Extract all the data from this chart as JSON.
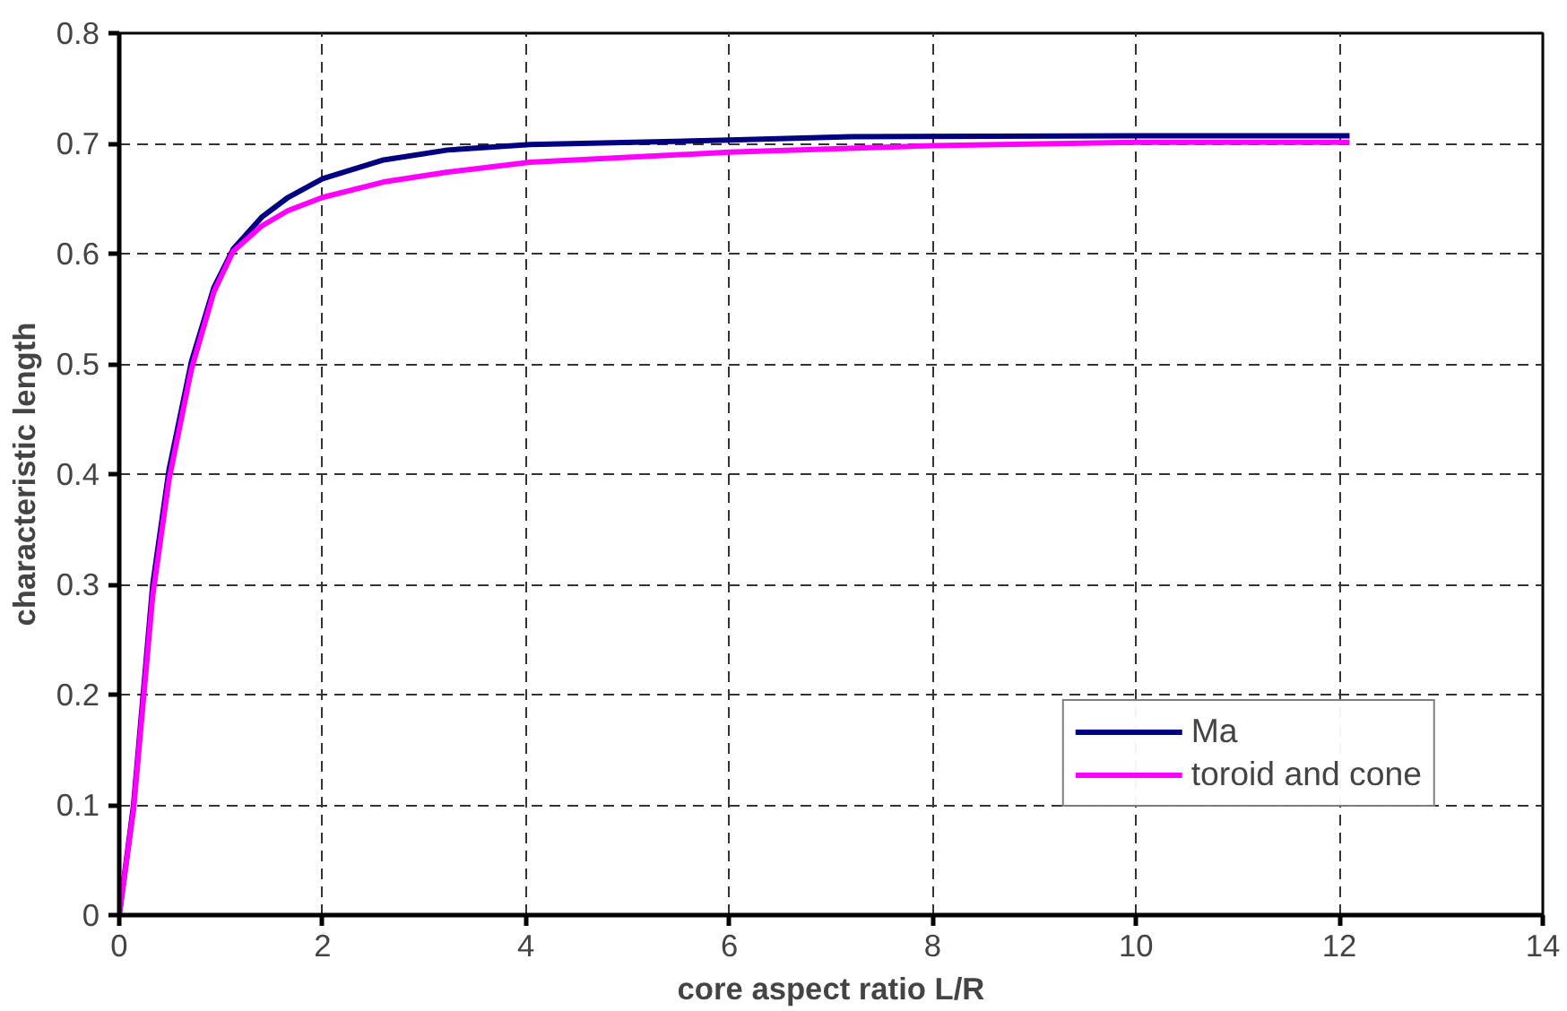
{
  "chart_data": {
    "type": "line",
    "xlabel": "core aspect ratio L/R",
    "ylabel": "characteristic length",
    "xlim": [
      0,
      14
    ],
    "xticks": [
      0,
      2,
      4,
      6,
      8,
      10,
      12,
      14
    ],
    "ylim": [
      0,
      0.8
    ],
    "yticks": [
      0,
      0.1,
      0.2,
      0.3,
      0.4,
      0.5,
      0.6,
      0.7,
      0.8
    ],
    "grid": true,
    "legend": "bottom right",
    "marker": "none",
    "line_style": "solid",
    "series": [
      {
        "name": "Ma",
        "color": "#000080",
        "x": [
          0,
          0.14,
          0.33,
          0.49,
          0.71,
          0.93,
          1.12,
          1.4,
          1.66,
          2.0,
          2.6,
          3.23,
          4.04,
          6.0,
          7.2,
          10.0,
          12.1
        ],
        "values": [
          0,
          0.099,
          0.3,
          0.404,
          0.502,
          0.569,
          0.604,
          0.633,
          0.651,
          0.668,
          0.685,
          0.694,
          0.699,
          0.703,
          0.706,
          0.707,
          0.707
        ]
      },
      {
        "name": "toroid and cone",
        "color": "#ff00ff",
        "x": [
          0,
          0.14,
          0.33,
          0.49,
          0.71,
          0.93,
          1.12,
          1.4,
          1.66,
          2.0,
          2.6,
          3.23,
          4.04,
          6.0,
          8.0,
          10.0,
          12.1
        ],
        "values": [
          0,
          0.095,
          0.29,
          0.395,
          0.495,
          0.565,
          0.602,
          0.625,
          0.639,
          0.651,
          0.665,
          0.674,
          0.683,
          0.692,
          0.698,
          0.701,
          0.701
        ]
      }
    ]
  }
}
